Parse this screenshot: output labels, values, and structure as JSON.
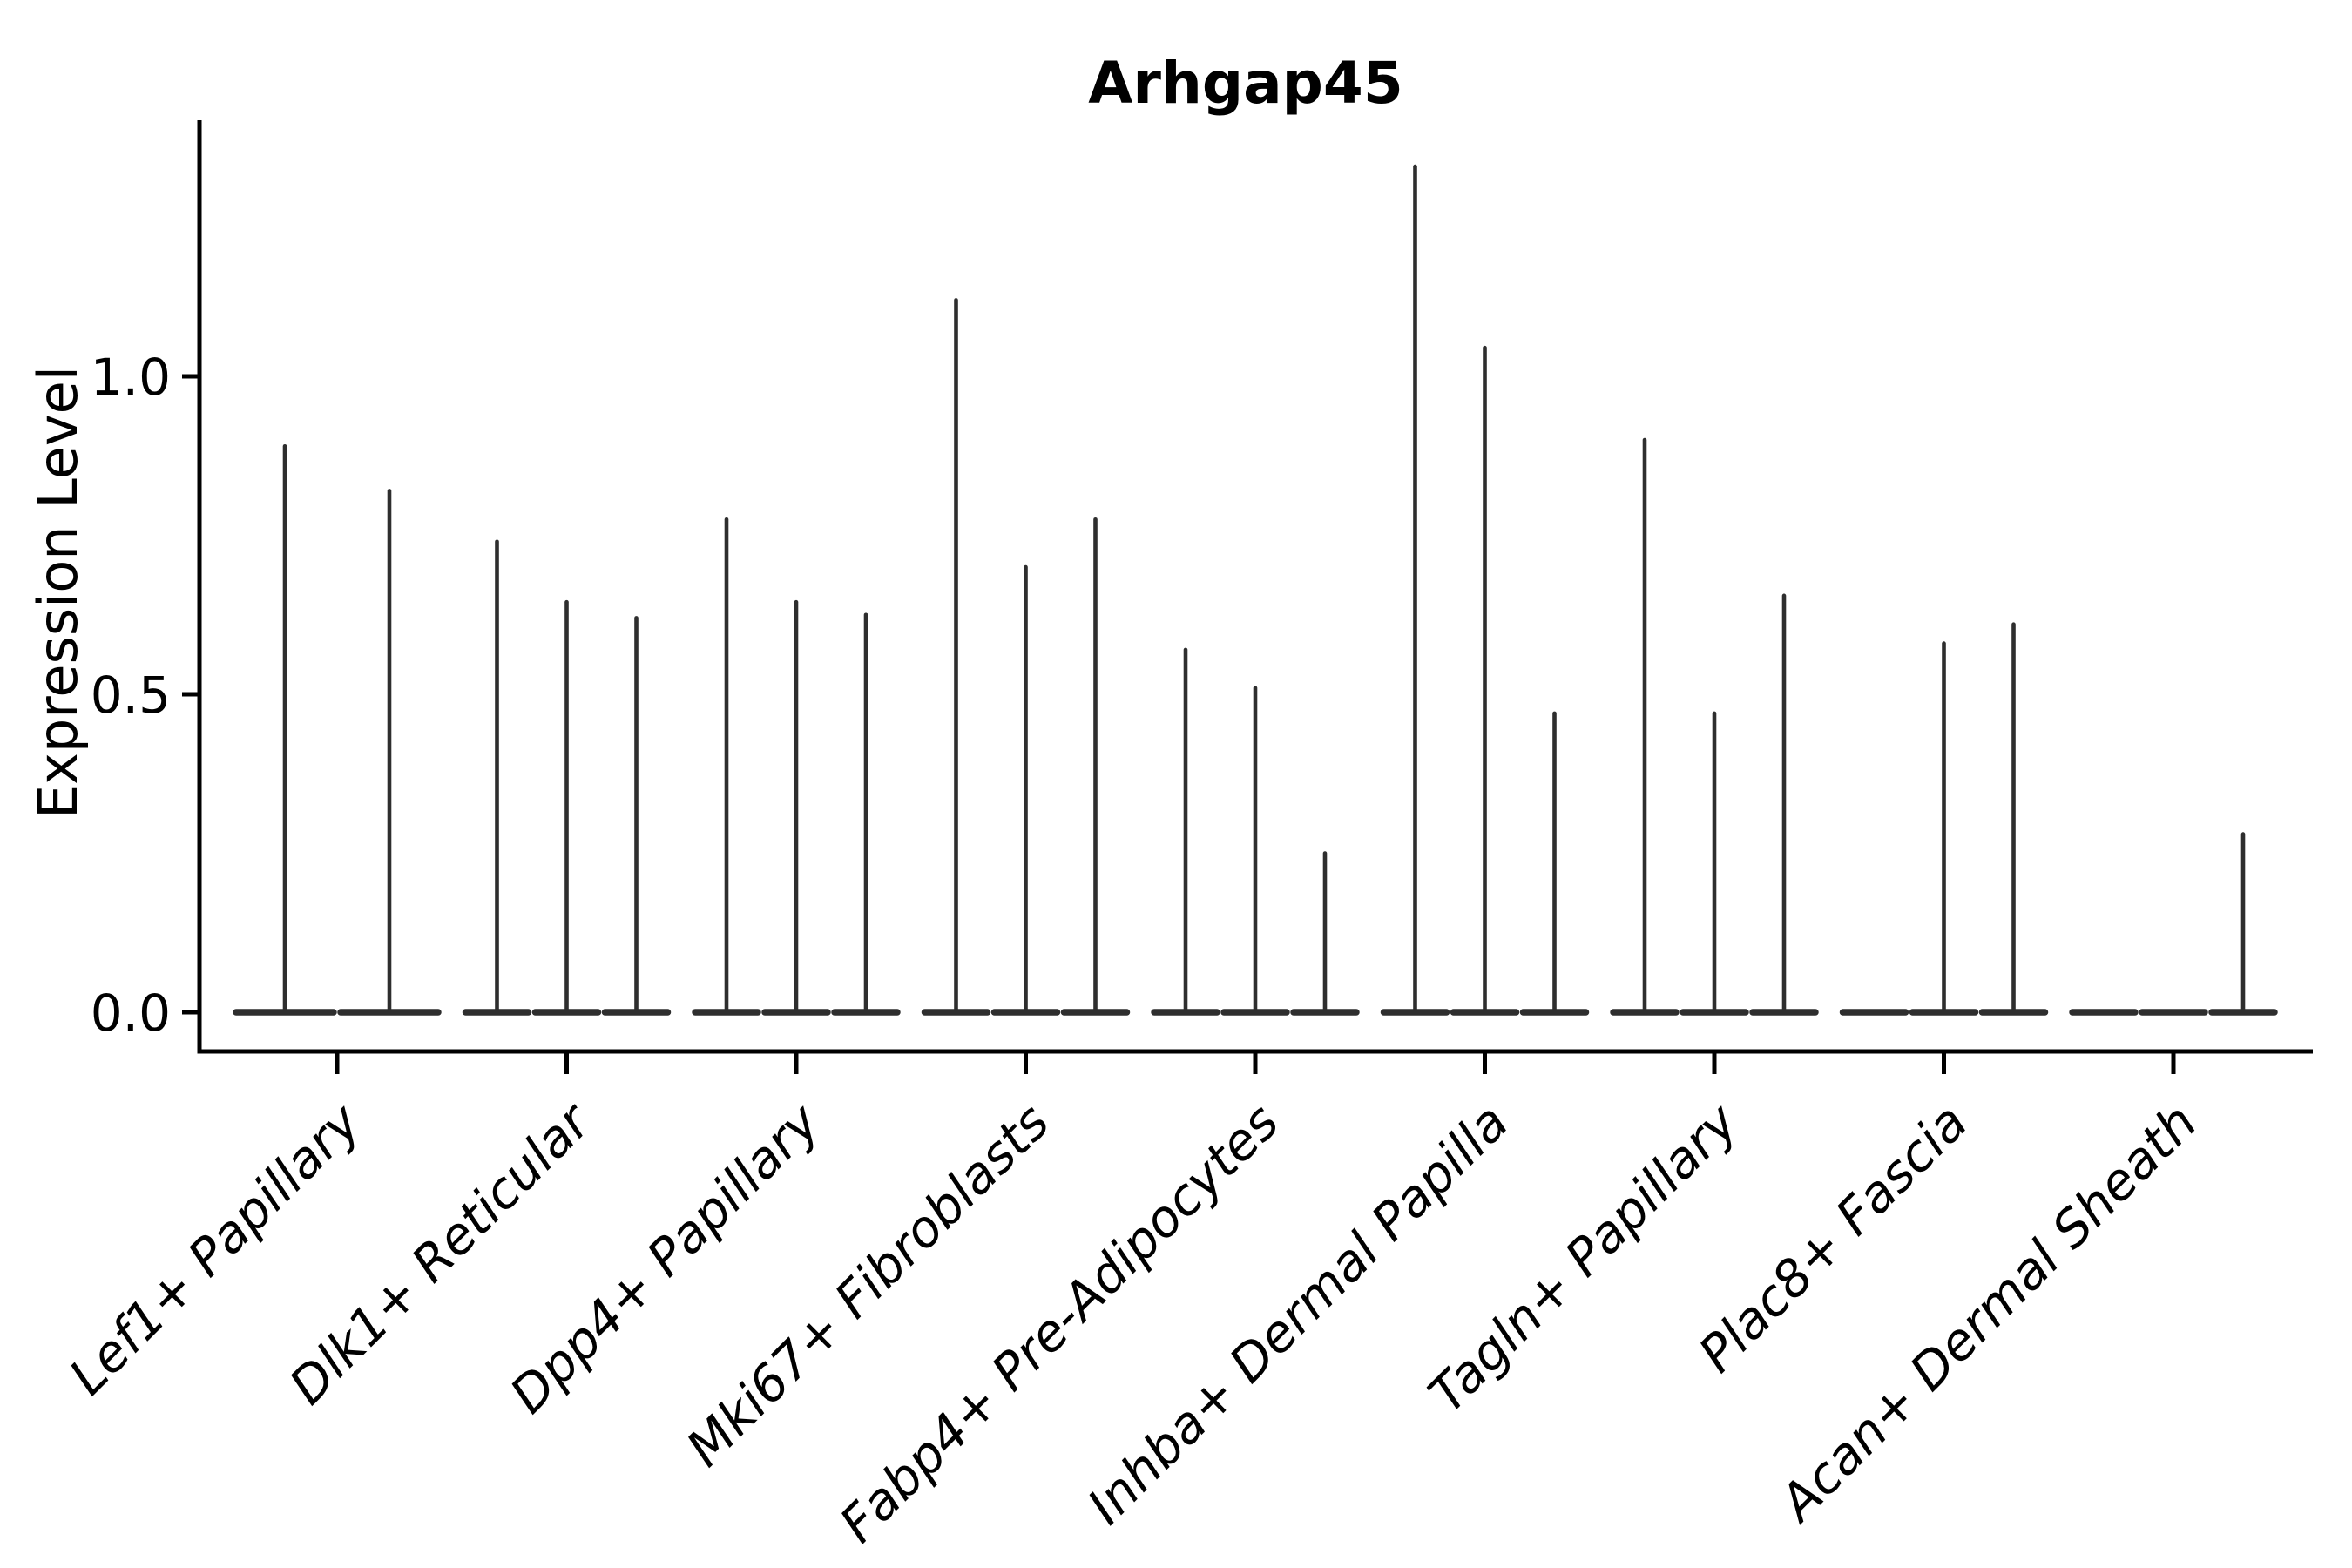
{
  "title": "Arhgap45",
  "chart_data": {
    "type": "violin",
    "title": "Arhgap45",
    "xlabel": "",
    "ylabel": "Expression Level",
    "yticks": [
      0.0,
      0.5,
      1.0
    ],
    "ytick_labels": [
      "0.0",
      "0.5",
      "1.0"
    ],
    "ylim": [
      -0.07,
      1.4
    ],
    "grid": false,
    "legend_position": "none",
    "style_note": "needle-thin violins: flat base at 0 with thin density spike up to max expression",
    "categories": [
      "Lef1+ Papillary",
      "Dlk1+ Reticular",
      "Dpp4+ Papillary",
      "Mki67+ Fibroblasts",
      "Fabp4+ Pre-Adipocytes",
      "Inhba+ Dermal Papilla",
      "Tagln+ Papillary",
      "Plac8+ Fascia",
      "Acan+ Dermal Sheath"
    ],
    "groups": [
      {
        "category": "Lef1+ Papillary",
        "violin_max": [
          0.89,
          0.82
        ]
      },
      {
        "category": "Dlk1+ Reticular",
        "violin_max": [
          0.74,
          0.645,
          0.62
        ]
      },
      {
        "category": "Dpp4+ Papillary",
        "violin_max": [
          0.775,
          0.645,
          0.625
        ]
      },
      {
        "category": "Mki67+ Fibroblasts",
        "violin_max": [
          1.12,
          0.7,
          0.775
        ]
      },
      {
        "category": "Fabp4+ Pre-Adipocytes",
        "violin_max": [
          0.57,
          0.51,
          0.25
        ]
      },
      {
        "category": "Inhba+ Dermal Papilla",
        "violin_max": [
          1.33,
          1.045,
          0.47
        ]
      },
      {
        "category": "Tagln+ Papillary",
        "violin_max": [
          0.9,
          0.47,
          0.655
        ]
      },
      {
        "category": "Plac8+ Fascia",
        "violin_max": [
          0.0,
          0.58,
          0.61
        ]
      },
      {
        "category": "Acan+ Dermal Sheath",
        "violin_max": [
          0.0,
          0.0,
          0.28
        ]
      }
    ],
    "colors": {
      "violin": "#2e2e2e",
      "axis": "#000000",
      "background": "#ffffff"
    }
  }
}
